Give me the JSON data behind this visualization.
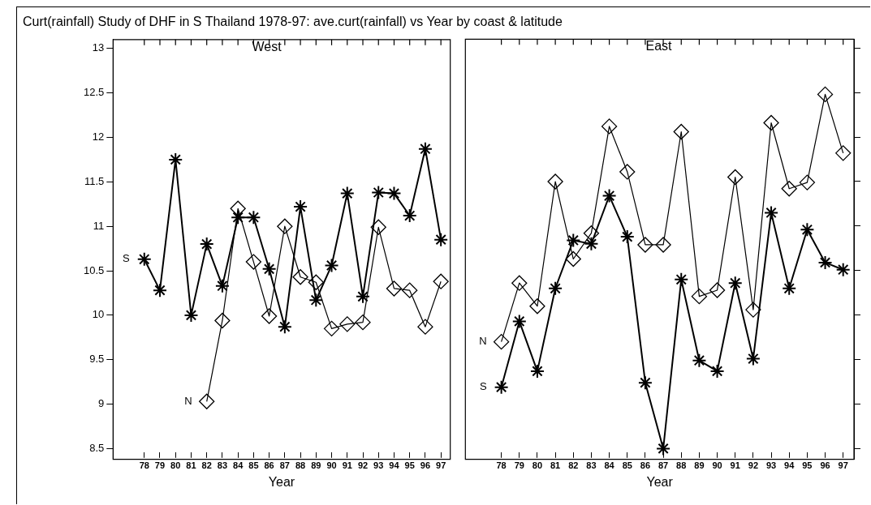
{
  "chart_data": [
    {
      "type": "line",
      "title": "Curt(rainfall) Study of DHF in S Thailand 1978-97: ave.curt(rainfall) vs Year by coast & latitude",
      "subtitle": "West",
      "xlabel": "Year",
      "categories": [
        "78",
        "79",
        "80",
        "81",
        "82",
        "83",
        "84",
        "85",
        "86",
        "87",
        "88",
        "89",
        "90",
        "91",
        "92",
        "93",
        "94",
        "95",
        "96",
        "97"
      ],
      "series": [
        {
          "name": "S",
          "color": "#000000",
          "marker": "cross",
          "values": [
            10.63,
            10.28,
            11.75,
            10.0,
            10.8,
            10.33,
            11.1,
            11.1,
            10.52,
            9.87,
            11.22,
            10.17,
            10.56,
            11.37,
            10.21,
            11.38,
            11.37,
            11.12,
            11.87,
            10.85
          ]
        },
        {
          "name": "N",
          "color": "#000000",
          "marker": "diamond",
          "values": [
            null,
            null,
            null,
            null,
            9.03,
            9.94,
            11.2,
            10.6,
            9.99,
            11.0,
            10.43,
            10.37,
            9.85,
            9.9,
            9.92,
            10.99,
            10.3,
            10.28,
            9.87,
            10.38
          ]
        }
      ],
      "ylim": [
        8.38,
        13.1
      ],
      "yticks": [
        8.5,
        9,
        9.5,
        10,
        10.5,
        11,
        11.5,
        12,
        12.5,
        13
      ],
      "grid": false,
      "legend": false
    },
    {
      "type": "line",
      "subtitle": "East",
      "xlabel": "Year",
      "categories": [
        "78",
        "79",
        "80",
        "81",
        "82",
        "83",
        "84",
        "85",
        "86",
        "87",
        "88",
        "89",
        "90",
        "91",
        "92",
        "93",
        "94",
        "95",
        "96",
        "97"
      ],
      "series": [
        {
          "name": "N",
          "color": "#000000",
          "marker": "diamond",
          "values": [
            9.7,
            10.36,
            10.1,
            11.5,
            10.63,
            10.92,
            12.12,
            11.61,
            10.79,
            10.79,
            12.06,
            10.21,
            10.28,
            11.55,
            10.06,
            12.16,
            11.42,
            11.49,
            12.48,
            11.82
          ]
        },
        {
          "name": "S",
          "color": "#000000",
          "marker": "cross",
          "values": [
            9.19,
            9.93,
            9.37,
            10.3,
            10.84,
            10.8,
            11.34,
            10.88,
            9.24,
            8.5,
            10.4,
            9.49,
            9.37,
            10.36,
            9.51,
            11.15,
            10.3,
            10.96,
            10.59,
            10.51
          ]
        }
      ],
      "ylim": [
        8.38,
        13.1
      ],
      "yticks": [
        8.5,
        9,
        9.5,
        10,
        10.5,
        11,
        11.5,
        12,
        12.5,
        13
      ],
      "grid": false,
      "legend": false,
      "tick_labels": "x"
    }
  ]
}
